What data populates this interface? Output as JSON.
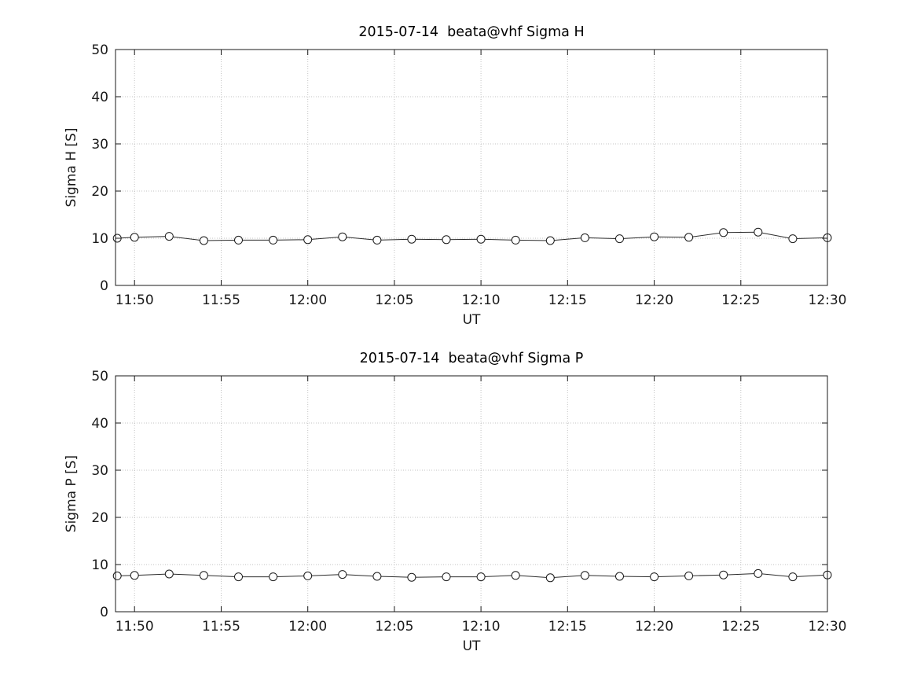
{
  "chart_data": [
    {
      "type": "line",
      "title": "2015-07-14  beata@vhf Sigma H",
      "xlabel": "UT",
      "ylabel": "Sigma H [S]",
      "marker": "open-circle",
      "line_color": "#2b2b2b",
      "grid": true,
      "legend": "none",
      "x": [
        "11:49",
        "11:50",
        "11:52",
        "11:54",
        "11:56",
        "11:58",
        "12:00",
        "12:02",
        "12:04",
        "12:06",
        "12:08",
        "12:10",
        "12:12",
        "12:14",
        "12:16",
        "12:18",
        "12:20",
        "12:22",
        "12:24",
        "12:26",
        "12:28",
        "12:30"
      ],
      "values": [
        10.0,
        10.2,
        10.4,
        9.5,
        9.6,
        9.6,
        9.7,
        10.3,
        9.6,
        9.8,
        9.7,
        9.8,
        9.6,
        9.5,
        10.1,
        9.9,
        10.3,
        10.2,
        11.2,
        11.3,
        9.9,
        10.1
      ],
      "xtick_labels": [
        "11:50",
        "11:55",
        "12:00",
        "12:05",
        "12:10",
        "12:15",
        "12:20",
        "12:25",
        "12:30"
      ],
      "yticks": [
        0,
        10,
        20,
        30,
        40,
        50
      ],
      "ylim": [
        0,
        50
      ],
      "xlim_minutes": [
        708.9,
        750
      ]
    },
    {
      "type": "line",
      "title": "2015-07-14  beata@vhf Sigma P",
      "xlabel": "UT",
      "ylabel": "Sigma P [S]",
      "marker": "open-circle",
      "line_color": "#2b2b2b",
      "grid": true,
      "legend": "none",
      "x": [
        "11:49",
        "11:50",
        "11:52",
        "11:54",
        "11:56",
        "11:58",
        "12:00",
        "12:02",
        "12:04",
        "12:06",
        "12:08",
        "12:10",
        "12:12",
        "12:14",
        "12:16",
        "12:18",
        "12:20",
        "12:22",
        "12:24",
        "12:26",
        "12:28",
        "12:30"
      ],
      "values": [
        7.6,
        7.7,
        8.0,
        7.7,
        7.4,
        7.4,
        7.6,
        7.9,
        7.5,
        7.3,
        7.4,
        7.4,
        7.7,
        7.2,
        7.7,
        7.5,
        7.4,
        7.6,
        7.8,
        8.1,
        7.4,
        7.8
      ],
      "xtick_labels": [
        "11:50",
        "11:55",
        "12:00",
        "12:05",
        "12:10",
        "12:15",
        "12:20",
        "12:25",
        "12:30"
      ],
      "yticks": [
        0,
        10,
        20,
        30,
        40,
        50
      ],
      "ylim": [
        0,
        50
      ],
      "xlim_minutes": [
        708.9,
        750
      ]
    }
  ]
}
